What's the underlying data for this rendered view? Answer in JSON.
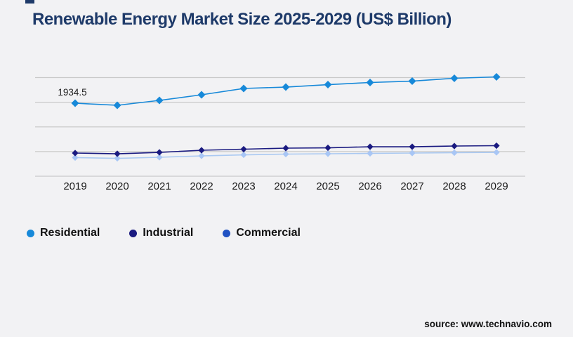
{
  "page": {
    "background": "#f2f2f4",
    "accent_navy": "#1e3a69",
    "gridline_color": "#c9c9c9"
  },
  "header": {
    "title": "Renewable Energy Market Size 2025-2029 (US$ Billion)"
  },
  "chart_data": {
    "type": "line",
    "title": "Renewable Energy Market Size 2025-2029 (US$ Billion)",
    "xlabel": "",
    "ylabel": "",
    "categories": [
      "2019",
      "2020",
      "2021",
      "2022",
      "2023",
      "2024",
      "2025",
      "2026",
      "2027",
      "2028",
      "2029"
    ],
    "series": [
      {
        "name": "Residential",
        "color": "#1789d9",
        "line_color": "#1789d9",
        "marker_color": "#1789d9",
        "marker": "diamond",
        "values": [
          1934.5,
          1879,
          2009,
          2158,
          2325,
          2362,
          2427,
          2483,
          2520,
          2595,
          2632
        ],
        "point_label": {
          "index": 0,
          "text": "1934.5"
        }
      },
      {
        "name": "Industrial",
        "color": "#1a1a80",
        "line_color": "#1a1a80",
        "marker_color": "#1a1a80",
        "marker": "diamond",
        "values": [
          614,
          595,
          632,
          688,
          716,
          744,
          753,
          781,
          781,
          800,
          809
        ]
      },
      {
        "name": "Commercial",
        "color": "#2152c3",
        "line_color": "#aac9f2",
        "marker_color": "#a8c6f5",
        "marker": "diamond",
        "values": [
          493,
          474,
          502,
          539,
          567,
          586,
          595,
          605,
          614,
          623,
          632
        ]
      }
    ],
    "ylim": [
      0,
      2632
    ],
    "gridline_count": 5,
    "grid": true,
    "y_axis_labels_visible": false,
    "legend_position": "bottom-left",
    "annotations": [
      "1934.5"
    ]
  },
  "footer": {
    "source_label": "source: www.technavio.com"
  }
}
